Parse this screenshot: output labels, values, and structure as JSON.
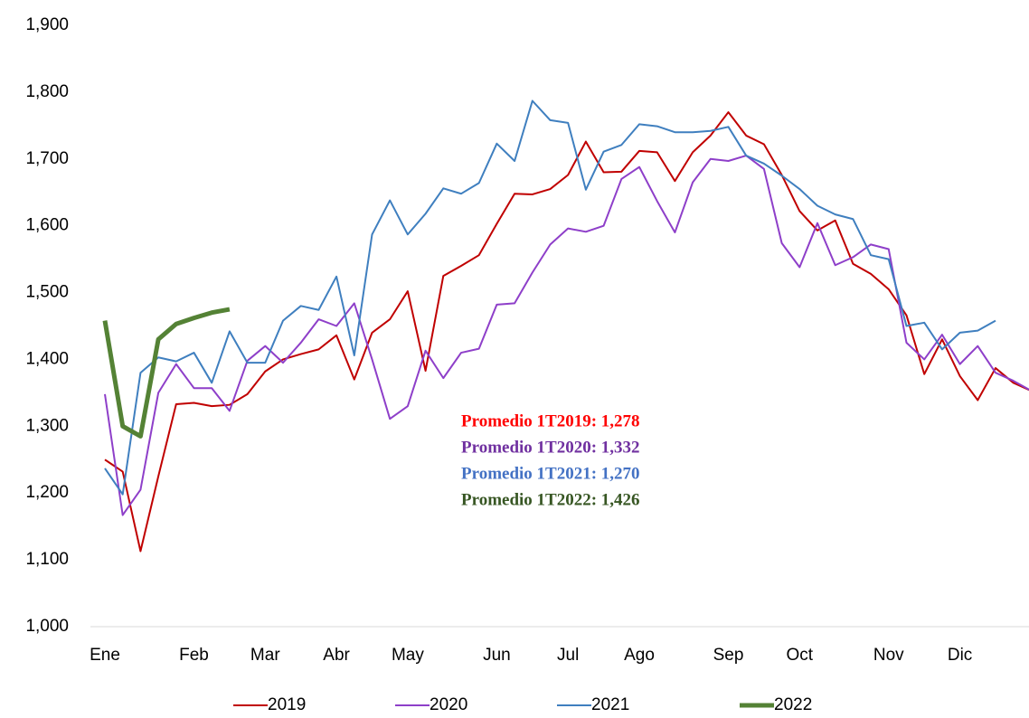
{
  "chart_data": {
    "type": "line",
    "categories": [
      "Ene",
      null,
      null,
      null,
      null,
      "Feb",
      null,
      null,
      null,
      "Mar",
      null,
      null,
      null,
      "Abr",
      null,
      null,
      null,
      "May",
      null,
      null,
      null,
      null,
      "Jun",
      null,
      null,
      null,
      "Jul",
      null,
      null,
      null,
      "Ago",
      null,
      null,
      null,
      null,
      "Sep",
      null,
      null,
      null,
      "Oct",
      null,
      null,
      null,
      null,
      "Nov",
      null,
      null,
      null,
      "Dic",
      null,
      null,
      null,
      null
    ],
    "series": [
      {
        "name": "2019",
        "color": "#c00000",
        "width": 2,
        "values": [
          1250,
          1232,
          1113,
          1225,
          1333,
          1335,
          1330,
          1332,
          1348,
          1382,
          1400,
          1408,
          1415,
          1436,
          1370,
          1440,
          1460,
          1502,
          1383,
          1525,
          1540,
          1556,
          1603,
          1648,
          1647,
          1655,
          1676,
          1726,
          1680,
          1681,
          1712,
          1710,
          1667,
          1710,
          1735,
          1770,
          1735,
          1722,
          1676,
          1622,
          1593,
          1608,
          1543,
          1528,
          1505,
          1466,
          1378,
          1430,
          1375,
          1339,
          1387,
          1365,
          1353
        ]
      },
      {
        "name": "2020",
        "color": "#8e3fc9",
        "width": 2,
        "values": [
          1348,
          1167,
          1205,
          1350,
          1393,
          1357,
          1357,
          1323,
          1398,
          1420,
          1395,
          1425,
          1460,
          1450,
          1484,
          1400,
          1311,
          1330,
          1413,
          1372,
          1410,
          1416,
          1482,
          1484,
          1530,
          1572,
          1596,
          1591,
          1600,
          1670,
          1688,
          1637,
          1590,
          1665,
          1700,
          1697,
          1705,
          1685,
          1574,
          1538,
          1604,
          1541,
          1553,
          1572,
          1565,
          1425,
          1400,
          1437,
          1393,
          1420,
          1380,
          1368,
          1353
        ]
      },
      {
        "name": "2021",
        "color": "#3f7fbf",
        "width": 2,
        "values": [
          1237,
          1198,
          1380,
          1403,
          1397,
          1410,
          1365,
          1442,
          1395,
          1395,
          1458,
          1480,
          1474,
          1524,
          1406,
          1587,
          1638,
          1587,
          1618,
          1656,
          1648,
          1664,
          1723,
          1697,
          1787,
          1758,
          1754,
          1654,
          1711,
          1721,
          1752,
          1749,
          1740,
          1740,
          1742,
          1748,
          1705,
          1693,
          1675,
          1655,
          1630,
          1617,
          1610,
          1556,
          1550,
          1450,
          1455,
          1415,
          1440,
          1443,
          1458,
          null,
          null
        ]
      },
      {
        "name": "2022",
        "color": "#548235",
        "width": 5,
        "values": [
          1458,
          1300,
          1285,
          1430,
          1453,
          1462,
          1470,
          1475,
          null,
          null,
          null,
          null,
          null,
          null,
          null,
          null,
          null,
          null,
          null,
          null,
          null,
          null,
          null,
          null,
          null,
          null,
          null,
          null,
          null,
          null,
          null,
          null,
          null,
          null,
          null,
          null,
          null,
          null,
          null,
          null,
          null,
          null,
          null,
          null,
          null,
          null,
          null,
          null,
          null,
          null,
          null,
          null,
          null
        ]
      }
    ],
    "ylim": [
      1000,
      1900
    ],
    "yticks": [
      {
        "value": 1000,
        "label": "1,000"
      },
      {
        "value": 1100,
        "label": "1,100"
      },
      {
        "value": 1200,
        "label": "1,200"
      },
      {
        "value": 1300,
        "label": "1,300"
      },
      {
        "value": 1400,
        "label": "1,400"
      },
      {
        "value": 1500,
        "label": "1,500"
      },
      {
        "value": 1600,
        "label": "1,600"
      },
      {
        "value": 1700,
        "label": "1,700"
      },
      {
        "value": 1800,
        "label": "1,800"
      },
      {
        "value": 1900,
        "label": "1,900"
      }
    ],
    "annotations": [
      {
        "text": "Promedio 1T2019: 1,278",
        "color": "#ff0000"
      },
      {
        "text": "Promedio 1T2020: 1,332",
        "color": "#7030a0"
      },
      {
        "text": "Promedio 1T2021: 1,270",
        "color": "#4472c4"
      },
      {
        "text": "Promedio 1T2022: 1,426",
        "color": "#375623"
      }
    ],
    "legend": "bottom"
  }
}
